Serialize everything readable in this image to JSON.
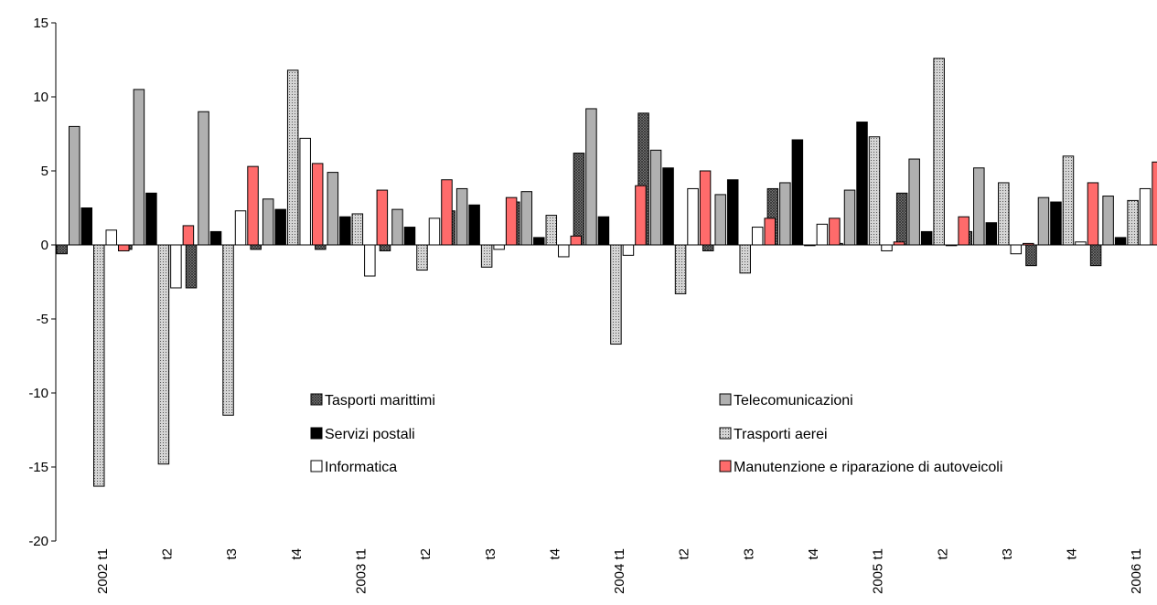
{
  "chart_data": {
    "type": "bar",
    "title": "",
    "xlabel": "",
    "ylabel": "",
    "ylim": [
      -20,
      15
    ],
    "yticks": [
      15,
      10,
      5,
      0,
      -5,
      -10,
      -15,
      -20
    ],
    "grid": false,
    "legend_position": "lower-center",
    "categories": [
      "2002 t1",
      "t2",
      "t3",
      "t4",
      "2003 t1",
      "t2",
      "t3",
      "t4",
      "2004 t1",
      "t2",
      "t3",
      "t4",
      "2005 t1",
      "t2",
      "t3",
      "t4",
      "2006 t1"
    ],
    "series": [
      {
        "name": "Tasporti marittimi",
        "style": "crosshatch",
        "color": "#7a7a7a",
        "values": [
          -0.6,
          -0.3,
          -2.9,
          -0.3,
          -0.3,
          -0.4,
          2.3,
          2.9,
          6.2,
          8.9,
          -0.4,
          3.8,
          0.1,
          3.5,
          0.9,
          -1.4,
          -1.4
        ]
      },
      {
        "name": "Telecomunicazioni",
        "style": "solid",
        "color": "#b0b0b0",
        "values": [
          8.0,
          10.5,
          9.0,
          3.1,
          4.9,
          2.4,
          3.8,
          3.6,
          9.2,
          6.4,
          3.4,
          4.2,
          3.7,
          5.8,
          5.2,
          3.2,
          3.3
        ]
      },
      {
        "name": "Servizi postali",
        "style": "solid",
        "color": "#000000",
        "values": [
          2.5,
          3.5,
          0.9,
          2.4,
          1.9,
          1.2,
          2.7,
          0.5,
          1.9,
          5.2,
          4.4,
          7.1,
          8.3,
          0.9,
          1.5,
          2.9,
          0.5
        ]
      },
      {
        "name": "Trasporti aerei",
        "style": "dotted",
        "color": "#bdbdbd",
        "values": [
          -16.3,
          -14.8,
          -11.5,
          11.8,
          2.1,
          -1.7,
          -1.5,
          2.0,
          -6.7,
          -3.3,
          -1.9,
          0.0,
          7.3,
          12.6,
          4.2,
          6.0,
          3.0
        ]
      },
      {
        "name": "Informatica",
        "style": "solid",
        "color": "#ffffff",
        "values": [
          1.0,
          -2.9,
          2.3,
          7.2,
          -2.1,
          1.8,
          -0.3,
          -0.8,
          -0.7,
          3.8,
          1.2,
          1.4,
          -0.4,
          0.0,
          -0.6,
          0.2,
          3.8
        ]
      },
      {
        "name": "Manutenzione e riparazione di autoveicoli",
        "style": "solid",
        "color": "#ff6b6b",
        "values": [
          -0.4,
          1.3,
          5.3,
          5.5,
          3.7,
          4.4,
          3.2,
          0.6,
          4.0,
          5.0,
          1.8,
          1.8,
          0.2,
          1.9,
          0.1,
          4.2,
          5.6
        ]
      }
    ]
  }
}
